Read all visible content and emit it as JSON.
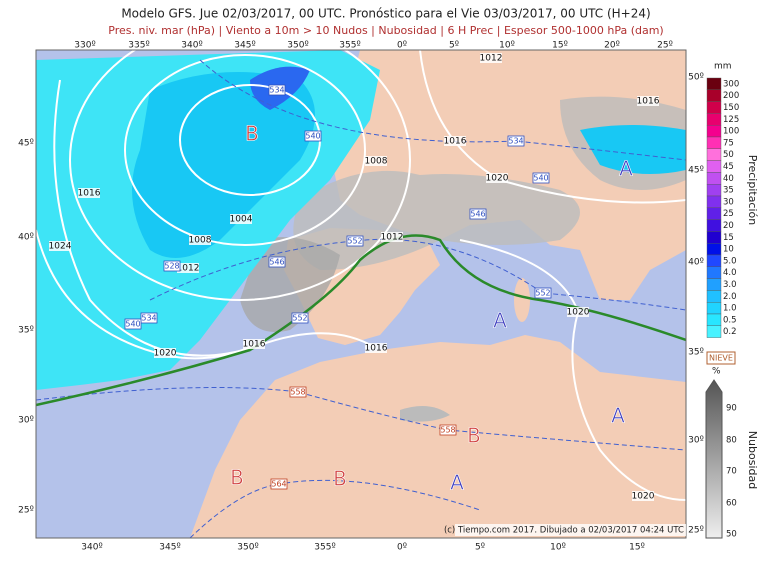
{
  "header": {
    "title": "Modelo GFS. Jue 02/03/2017, 00 UTC. Pronóstico para el Vie 03/03/2017, 00 UTC (H+24)",
    "subtitle": "Pres. niv. mar (hPa) | Viento a 10m > 10 Nudos | Nubosidad | 6 H Prec | Espesor 500-1000 hPa (dam)"
  },
  "map": {
    "top_lon": [
      "330º",
      "335º",
      "340º",
      "345º",
      "350º",
      "355º",
      "0º",
      "5º",
      "10º",
      "15º",
      "20º",
      "25º"
    ],
    "bottom_lon": [
      "340º",
      "345º",
      "350º",
      "355º",
      "0º",
      "5º",
      "10º",
      "15º"
    ],
    "left_lat": [
      "45º",
      "40º",
      "35º",
      "30º",
      "25º"
    ],
    "right_lat": [
      "50º",
      "45º",
      "40º",
      "35º",
      "30º",
      "25º"
    ],
    "isobar_labels": [
      "1012",
      "1016",
      "1008",
      "1016",
      "1020",
      "1016",
      "1004",
      "1008",
      "1012",
      "1024",
      "1012",
      "1020",
      "1016",
      "1016",
      "1020",
      "1020"
    ],
    "thickness_labels": [
      "534",
      "540",
      "534",
      "540",
      "546",
      "552",
      "546",
      "528",
      "552",
      "534",
      "540",
      "552",
      "558",
      "558",
      "564"
    ],
    "centers": [
      {
        "label": "B",
        "color": "#d04040"
      },
      {
        "label": "A",
        "color": "#4040c0"
      },
      {
        "label": "A",
        "color": "#4040c0"
      },
      {
        "label": "A",
        "color": "#4040c0"
      },
      {
        "label": "B",
        "color": "#d04040"
      },
      {
        "label": "B",
        "color": "#d04040"
      },
      {
        "label": "B",
        "color": "#d04040"
      },
      {
        "label": "A",
        "color": "#4040c0"
      }
    ],
    "credit": "(c) Tiempo.com 2017. Dibujado a 02/03/2017 04:24 UTC"
  },
  "precip_legend": {
    "unit": "mm",
    "title": "Precipitación",
    "levels": [
      {
        "label": "300",
        "color": "#6a0010"
      },
      {
        "label": "200",
        "color": "#a8002a"
      },
      {
        "label": "150",
        "color": "#d0004a"
      },
      {
        "label": "125",
        "color": "#e8006e"
      },
      {
        "label": "100",
        "color": "#f4008e"
      },
      {
        "label": "75",
        "color": "#ff30b4"
      },
      {
        "label": "50",
        "color": "#ff70dc"
      },
      {
        "label": "45",
        "color": "#e060f0"
      },
      {
        "label": "40",
        "color": "#c050f0"
      },
      {
        "label": "35",
        "color": "#a040f0"
      },
      {
        "label": "30",
        "color": "#8030ee"
      },
      {
        "label": "25",
        "color": "#6020e8"
      },
      {
        "label": "20",
        "color": "#4010e0"
      },
      {
        "label": "15",
        "color": "#2000d0"
      },
      {
        "label": "10",
        "color": "#0010e8"
      },
      {
        "label": "5.0",
        "color": "#2048ff"
      },
      {
        "label": "4.0",
        "color": "#2078ff"
      },
      {
        "label": "3.0",
        "color": "#20a0ff"
      },
      {
        "label": "2.0",
        "color": "#20c0ff"
      },
      {
        "label": "1.0",
        "color": "#20d4ff"
      },
      {
        "label": "0.5",
        "color": "#28e6ff"
      },
      {
        "label": "0.2",
        "color": "#48f2ff"
      }
    ]
  },
  "cloud_legend": {
    "snow": "NIEVE",
    "unit": "%",
    "title": "Nubosidad",
    "levels": [
      "90",
      "80",
      "70",
      "60",
      "50"
    ]
  }
}
